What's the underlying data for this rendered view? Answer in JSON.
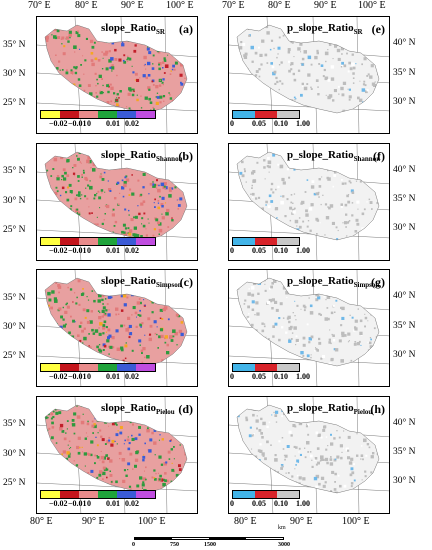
{
  "top_longitudes": [
    "70° E",
    "80° E",
    "90° E",
    "100° E",
    "70° E",
    "80° E",
    "90° E",
    "100° E"
  ],
  "bottom_longitudes": [
    "80° E",
    "90° E",
    "100° E",
    "80° E",
    "90° E",
    "100° E"
  ],
  "left_latitudes": [
    "35° N",
    "30° N",
    "25° N"
  ],
  "right_latitudes": [
    "40° N",
    "35° N",
    "30° N"
  ],
  "panels": [
    {
      "id": "a",
      "letter": "(a)",
      "title_main": "slope_Ratio",
      "title_sub": "SR",
      "type": "slope"
    },
    {
      "id": "e",
      "letter": "(e)",
      "title_main": "p_slope_Ratio",
      "title_sub": "SR",
      "type": "p"
    },
    {
      "id": "b",
      "letter": "(b)",
      "title_main": "slope_Ratio",
      "title_sub": "Shannon",
      "type": "slope"
    },
    {
      "id": "f",
      "letter": "(f)",
      "title_main": "p_slope_Ratio",
      "title_sub": "Shannon",
      "type": "p"
    },
    {
      "id": "c",
      "letter": "(c)",
      "title_main": "slope_Ratio",
      "title_sub": "Simpson",
      "type": "slope"
    },
    {
      "id": "g",
      "letter": "(g)",
      "title_main": "p_slope_Ratio",
      "title_sub": "Simpson",
      "type": "p"
    },
    {
      "id": "d",
      "letter": "(d)",
      "title_main": "slope_Ratio",
      "title_sub": "Pielou",
      "type": "slope"
    },
    {
      "id": "h",
      "letter": "(h)",
      "title_main": "p_slope_Ratio",
      "title_sub": "Pielou",
      "type": "p"
    }
  ],
  "slope_legend": {
    "colors": [
      "#ffff40",
      "#c4151c",
      "#e88b8b",
      "#1fa33b",
      "#3b5bd6",
      "#c04de0"
    ],
    "labels": [
      "−0.02",
      "−0.01",
      "0",
      "0.01",
      "0.02"
    ]
  },
  "p_legend": {
    "colors": [
      "#42b4e8",
      "#d8232a",
      "#c8c8c8"
    ],
    "labels": [
      "0",
      "0.05",
      "0.10",
      "1.00"
    ]
  },
  "scale_bar": {
    "unit": "km",
    "labels": [
      "0",
      "750",
      "1500",
      "3000"
    ]
  }
}
